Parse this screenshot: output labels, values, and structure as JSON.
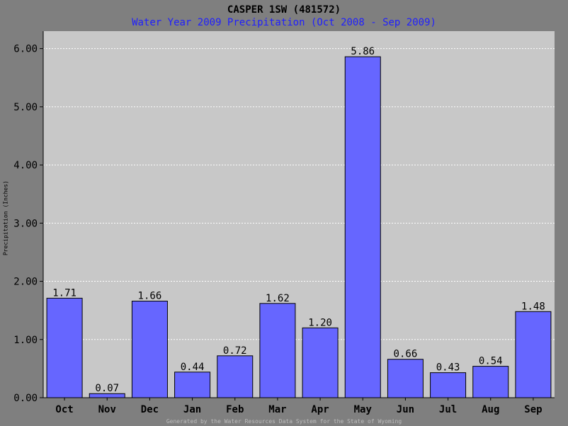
{
  "chart_data": {
    "type": "bar",
    "title": "CASPER 1SW (481572)",
    "subtitle": "Water Year 2009 Precipitation (Oct 2008 - Sep 2009)",
    "xlabel": "",
    "ylabel": "Precipitation (Inches)",
    "categories": [
      "Oct",
      "Nov",
      "Dec",
      "Jan",
      "Feb",
      "Mar",
      "Apr",
      "May",
      "Jun",
      "Jul",
      "Aug",
      "Sep"
    ],
    "values": [
      1.71,
      0.07,
      1.66,
      0.44,
      0.72,
      1.62,
      1.2,
      5.86,
      0.66,
      0.43,
      0.54,
      1.48
    ],
    "value_labels": [
      "1.71",
      "0.07",
      "1.66",
      "0.44",
      "0.72",
      "1.62",
      "1.20",
      "5.86",
      "0.66",
      "0.43",
      "0.54",
      "1.48"
    ],
    "ylim": [
      0,
      6.3
    ],
    "yticks": [
      0,
      1,
      2,
      3,
      4,
      5,
      6
    ],
    "ytick_labels": [
      "0.00",
      "1.00",
      "2.00",
      "3.00",
      "4.00",
      "5.00",
      "6.00"
    ],
    "grid": true,
    "legend": "none",
    "colors": {
      "bar_fill": "#6666ff",
      "bar_stroke": "#000000",
      "plot_background": "#c8c8c8",
      "page_background": "#7f7f7f",
      "gridline": "#ffffff",
      "subtitle": "#1f1fff"
    },
    "footer": "Generated by the Water Resources Data System for the State of Wyoming"
  }
}
